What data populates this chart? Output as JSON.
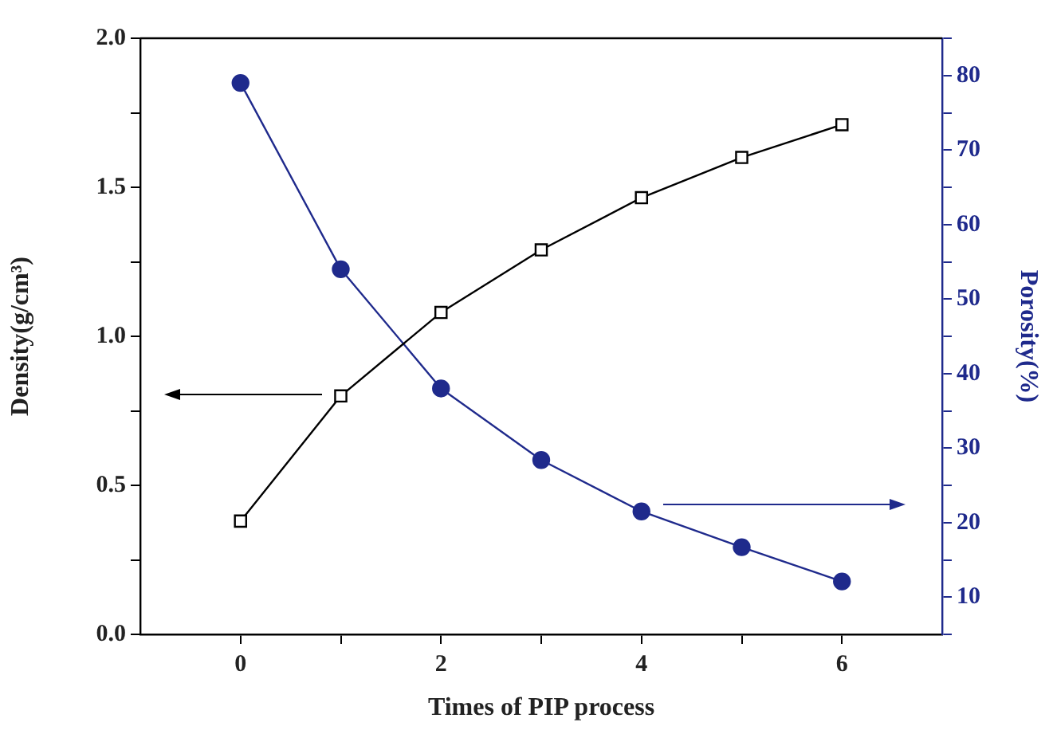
{
  "chart_data": {
    "type": "line",
    "xlabel": "Times of PIP process",
    "ylabel": "Density(g/cm³)",
    "y2label": "Porosity(%)",
    "x": [
      0,
      1,
      2,
      3,
      4,
      5,
      6
    ],
    "series": [
      {
        "color": "#000000",
        "marker": "square",
        "axis": "y",
        "values": [
          0.38,
          0.8,
          1.08,
          1.29,
          1.465,
          1.6,
          1.71
        ]
      },
      {
        "color": "#1f2a8c",
        "marker": "circle",
        "axis": "y2",
        "values": [
          79,
          54,
          38,
          28.4,
          21.5,
          16.7,
          12.1
        ]
      }
    ],
    "xlim": [
      -1,
      7
    ],
    "xticks": [
      0,
      {
        "value": 1,
        "label": null
      },
      2,
      {
        "value": 3,
        "label": null
      },
      4,
      {
        "value": 5,
        "label": null
      },
      6
    ],
    "ylim": [
      0,
      2
    ],
    "yticks": [
      {
        "value": 0,
        "label": "0.0"
      },
      {
        "value": 0.25,
        "label": null
      },
      0.5,
      {
        "value": 0.75,
        "label": null
      },
      {
        "value": 1,
        "label": "1.0"
      },
      {
        "value": 1.25,
        "label": null
      },
      1.5,
      {
        "value": 1.75,
        "label": null
      },
      {
        "value": 2,
        "label": "2.0"
      }
    ],
    "y2lim": [
      5,
      85
    ],
    "y2ticks": [
      {
        "value": 5,
        "label": null
      },
      10,
      {
        "value": 15,
        "label": null
      },
      20,
      {
        "value": 25,
        "label": null
      },
      30,
      {
        "value": 35,
        "label": null
      },
      40,
      {
        "value": 45,
        "label": null
      },
      50,
      {
        "value": 55,
        "label": null
      },
      60,
      {
        "value": 65,
        "label": null
      },
      70,
      {
        "value": 75,
        "label": null
      },
      80,
      {
        "value": 85,
        "label": null
      }
    ],
    "grid": false,
    "legend": false,
    "line_style": "solid"
  }
}
